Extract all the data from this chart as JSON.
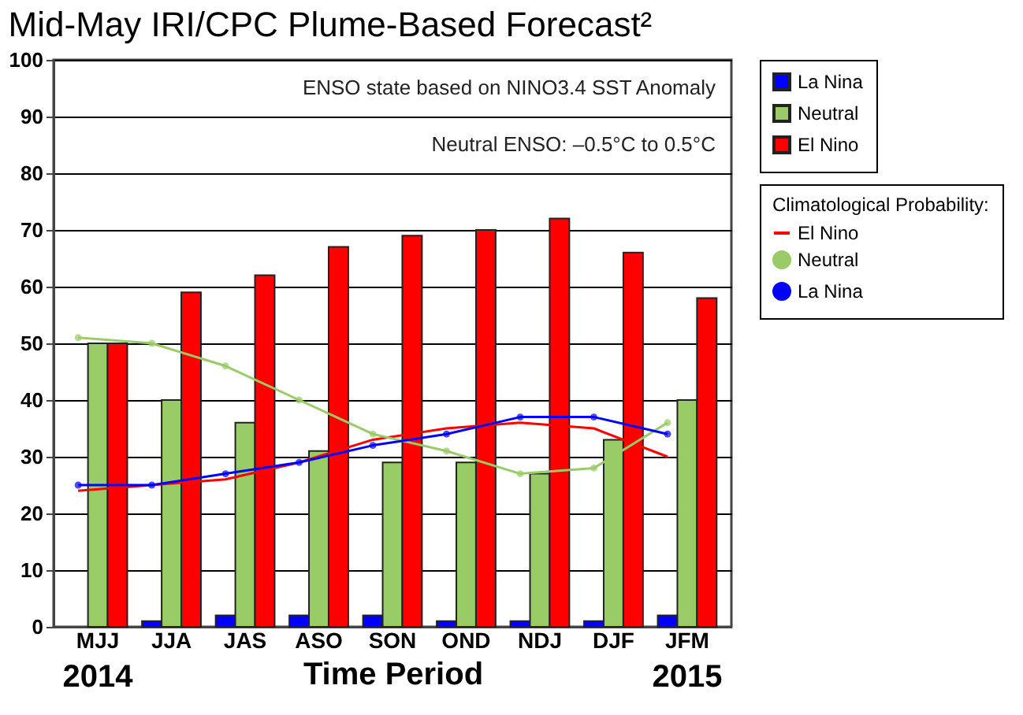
{
  "chart_data": {
    "type": "bar",
    "title": "Mid-May IRI/CPC Plume-Based Forecast²",
    "xlabel": "Time Period",
    "legend_title": "Climatological Probability:",
    "categories": [
      "MJJ",
      "JJA",
      "JAS",
      "ASO",
      "SON",
      "OND",
      "NDJ",
      "DJF",
      "JFM"
    ],
    "series": [
      {
        "name": "La Nina",
        "color": "#0000ff",
        "values": [
          0,
          1,
          2,
          2,
          2,
          1,
          1,
          1,
          2
        ]
      },
      {
        "name": "Neutral",
        "color": "#99cc66",
        "values": [
          50,
          40,
          36,
          31,
          29,
          29,
          27,
          33,
          40
        ]
      },
      {
        "name": "El Nino",
        "color": "#ff0000",
        "values": [
          50,
          59,
          62,
          67,
          69,
          70,
          72,
          66,
          58
        ]
      },
      {
        "name": "El Nino",
        "type": "line",
        "color": "#ff0000",
        "marker": "none",
        "values": [
          24,
          25,
          26,
          29,
          33,
          35,
          36,
          35,
          30
        ]
      },
      {
        "name": "Neutral",
        "type": "line",
        "color": "#99cc66",
        "marker": "circle",
        "values": [
          51,
          50,
          46,
          40,
          34,
          31,
          27,
          28,
          36
        ]
      },
      {
        "name": "La Nina",
        "type": "line",
        "color": "#0000ff",
        "marker": "circle",
        "values": [
          25,
          25,
          27,
          29,
          32,
          34,
          37,
          37,
          34
        ]
      }
    ],
    "ylim": [
      0,
      100
    ],
    "yticks": [
      0,
      10,
      20,
      30,
      40,
      50,
      60,
      70,
      80,
      90,
      100
    ],
    "grid": "y",
    "legend": "right",
    "annotations": [
      "ENSO state based on NINO3.4 SST Anomaly",
      "Neutral ENSO: –0.5°C to 0.5°C",
      "2014",
      "2015"
    ]
  }
}
